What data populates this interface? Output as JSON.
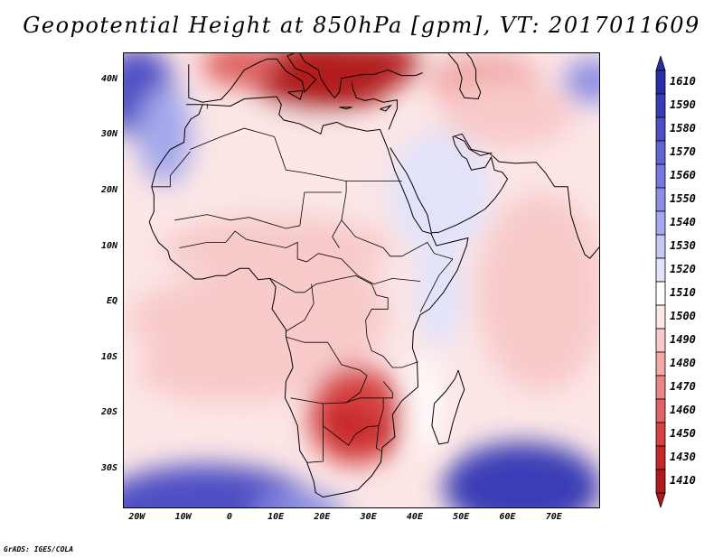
{
  "title": "Geopotential Height at 850hPa [gpm], VT: 2017011609",
  "footer": "GrADS: IGES/COLA",
  "map": {
    "projection": "lat-lon",
    "lon_range": [
      -23,
      80
    ],
    "lat_range": [
      -37,
      45
    ],
    "lon_ticks": [
      {
        "lon": -20,
        "label": "20W"
      },
      {
        "lon": -10,
        "label": "10W"
      },
      {
        "lon": 0,
        "label": "0"
      },
      {
        "lon": 10,
        "label": "10E"
      },
      {
        "lon": 20,
        "label": "20E"
      },
      {
        "lon": 30,
        "label": "30E"
      },
      {
        "lon": 40,
        "label": "40E"
      },
      {
        "lon": 50,
        "label": "50E"
      },
      {
        "lon": 60,
        "label": "60E"
      },
      {
        "lon": 70,
        "label": "70E"
      }
    ],
    "lat_ticks": [
      {
        "lat": 40,
        "label": "40N"
      },
      {
        "lat": 30,
        "label": "30N"
      },
      {
        "lat": 20,
        "label": "20N"
      },
      {
        "lat": 10,
        "label": "10N"
      },
      {
        "lat": 0,
        "label": "EQ"
      },
      {
        "lat": -10,
        "label": "10S"
      },
      {
        "lat": -20,
        "label": "20S"
      },
      {
        "lat": -30,
        "label": "30S"
      }
    ],
    "background_value": 1508,
    "features": [
      {
        "name": "mediterranean-high",
        "lon": 20,
        "lat": 41,
        "rx": 16,
        "ry": 6.5,
        "value": 1418
      },
      {
        "name": "turkey-high",
        "lon": 31,
        "lat": 43,
        "rx": 10,
        "ry": 4,
        "value": 1430
      },
      {
        "name": "iberia-high",
        "lon": 2,
        "lat": 43,
        "rx": 8,
        "ry": 4,
        "value": 1465
      },
      {
        "name": "caspian-warm",
        "lon": 55,
        "lat": 40,
        "rx": 12,
        "ry": 5,
        "value": 1490
      },
      {
        "name": "iran-warm",
        "lon": 60,
        "lat": 34,
        "rx": 14,
        "ry": 6,
        "value": 1495
      },
      {
        "name": "sahara-warm",
        "lon": 10,
        "lat": 20,
        "rx": 28,
        "ry": 14,
        "value": 1503
      },
      {
        "name": "sahel-warm",
        "lon": 10,
        "lat": 10,
        "rx": 25,
        "ry": 6,
        "value": 1500
      },
      {
        "name": "gulf-guinea-warm",
        "lon": 0,
        "lat": -3,
        "rx": 22,
        "ry": 8,
        "value": 1500
      },
      {
        "name": "congo-warm",
        "lon": 22,
        "lat": -2,
        "rx": 12,
        "ry": 10,
        "value": 1493
      },
      {
        "name": "atlantic-s-warm",
        "lon": 0,
        "lat": -12,
        "rx": 20,
        "ry": 6,
        "value": 1500
      },
      {
        "name": "indian-ocean-warm",
        "lon": 67,
        "lat": 2,
        "rx": 14,
        "ry": 18,
        "value": 1495
      },
      {
        "name": "southern-africa-low",
        "lon": 27,
        "lat": -20,
        "rx": 10,
        "ry": 9,
        "value": 1455
      },
      {
        "name": "botswana-low",
        "lon": 25,
        "lat": -22,
        "rx": 5,
        "ry": 4,
        "value": 1438
      },
      {
        "name": "mozambique-low",
        "lon": 33,
        "lat": -24,
        "rx": 3,
        "ry": 3,
        "value": 1440
      },
      {
        "name": "arabia-cool",
        "lon": 45,
        "lat": 20,
        "rx": 11,
        "ry": 11,
        "value": 1527
      },
      {
        "name": "horn-africa-cool",
        "lon": 45,
        "lat": 2,
        "rx": 5,
        "ry": 10,
        "value": 1522
      },
      {
        "name": "mozambique-channel-cool",
        "lon": 42,
        "lat": -18,
        "rx": 3,
        "ry": 9,
        "value": 1515
      },
      {
        "name": "atlantic-n-cool",
        "lon": -20,
        "lat": 38,
        "rx": 8,
        "ry": 8,
        "value": 1585
      },
      {
        "name": "morocco-coast-cool",
        "lon": -14,
        "lat": 30,
        "rx": 6,
        "ry": 9,
        "value": 1545
      },
      {
        "name": "black-sea-cool",
        "lon": 78,
        "lat": 40,
        "rx": 6,
        "ry": 4,
        "value": 1560
      },
      {
        "name": "south-atlantic-ridge",
        "lon": -5,
        "lat": -37,
        "rx": 24,
        "ry": 8,
        "value": 1590
      },
      {
        "name": "south-indian-ridge",
        "lon": 63,
        "lat": -33,
        "rx": 17,
        "ry": 8,
        "value": 1605
      },
      {
        "name": "cape-ridge",
        "lon": 15,
        "lat": -37,
        "rx": 10,
        "ry": 3,
        "value": 1560
      }
    ],
    "boundary_color": "#000000"
  },
  "colorbar": {
    "levels": [
      "1610",
      "1590",
      "1580",
      "1570",
      "1560",
      "1550",
      "1540",
      "1530",
      "1520",
      "1510",
      "1500",
      "1490",
      "1480",
      "1470",
      "1460",
      "1450",
      "1430",
      "1410"
    ],
    "colors": [
      "#2a2ca8",
      "#3a3cb6",
      "#4f4fc4",
      "#6264d0",
      "#7578dc",
      "#8b8fe4",
      "#a4a8ec",
      "#c4c8f4",
      "#e1e3fb",
      "#ffffff",
      "#fce6e6",
      "#f8caca",
      "#f2a8a8",
      "#ea8585",
      "#e06262",
      "#d64242",
      "#c62828",
      "#b11a1a"
    ]
  }
}
